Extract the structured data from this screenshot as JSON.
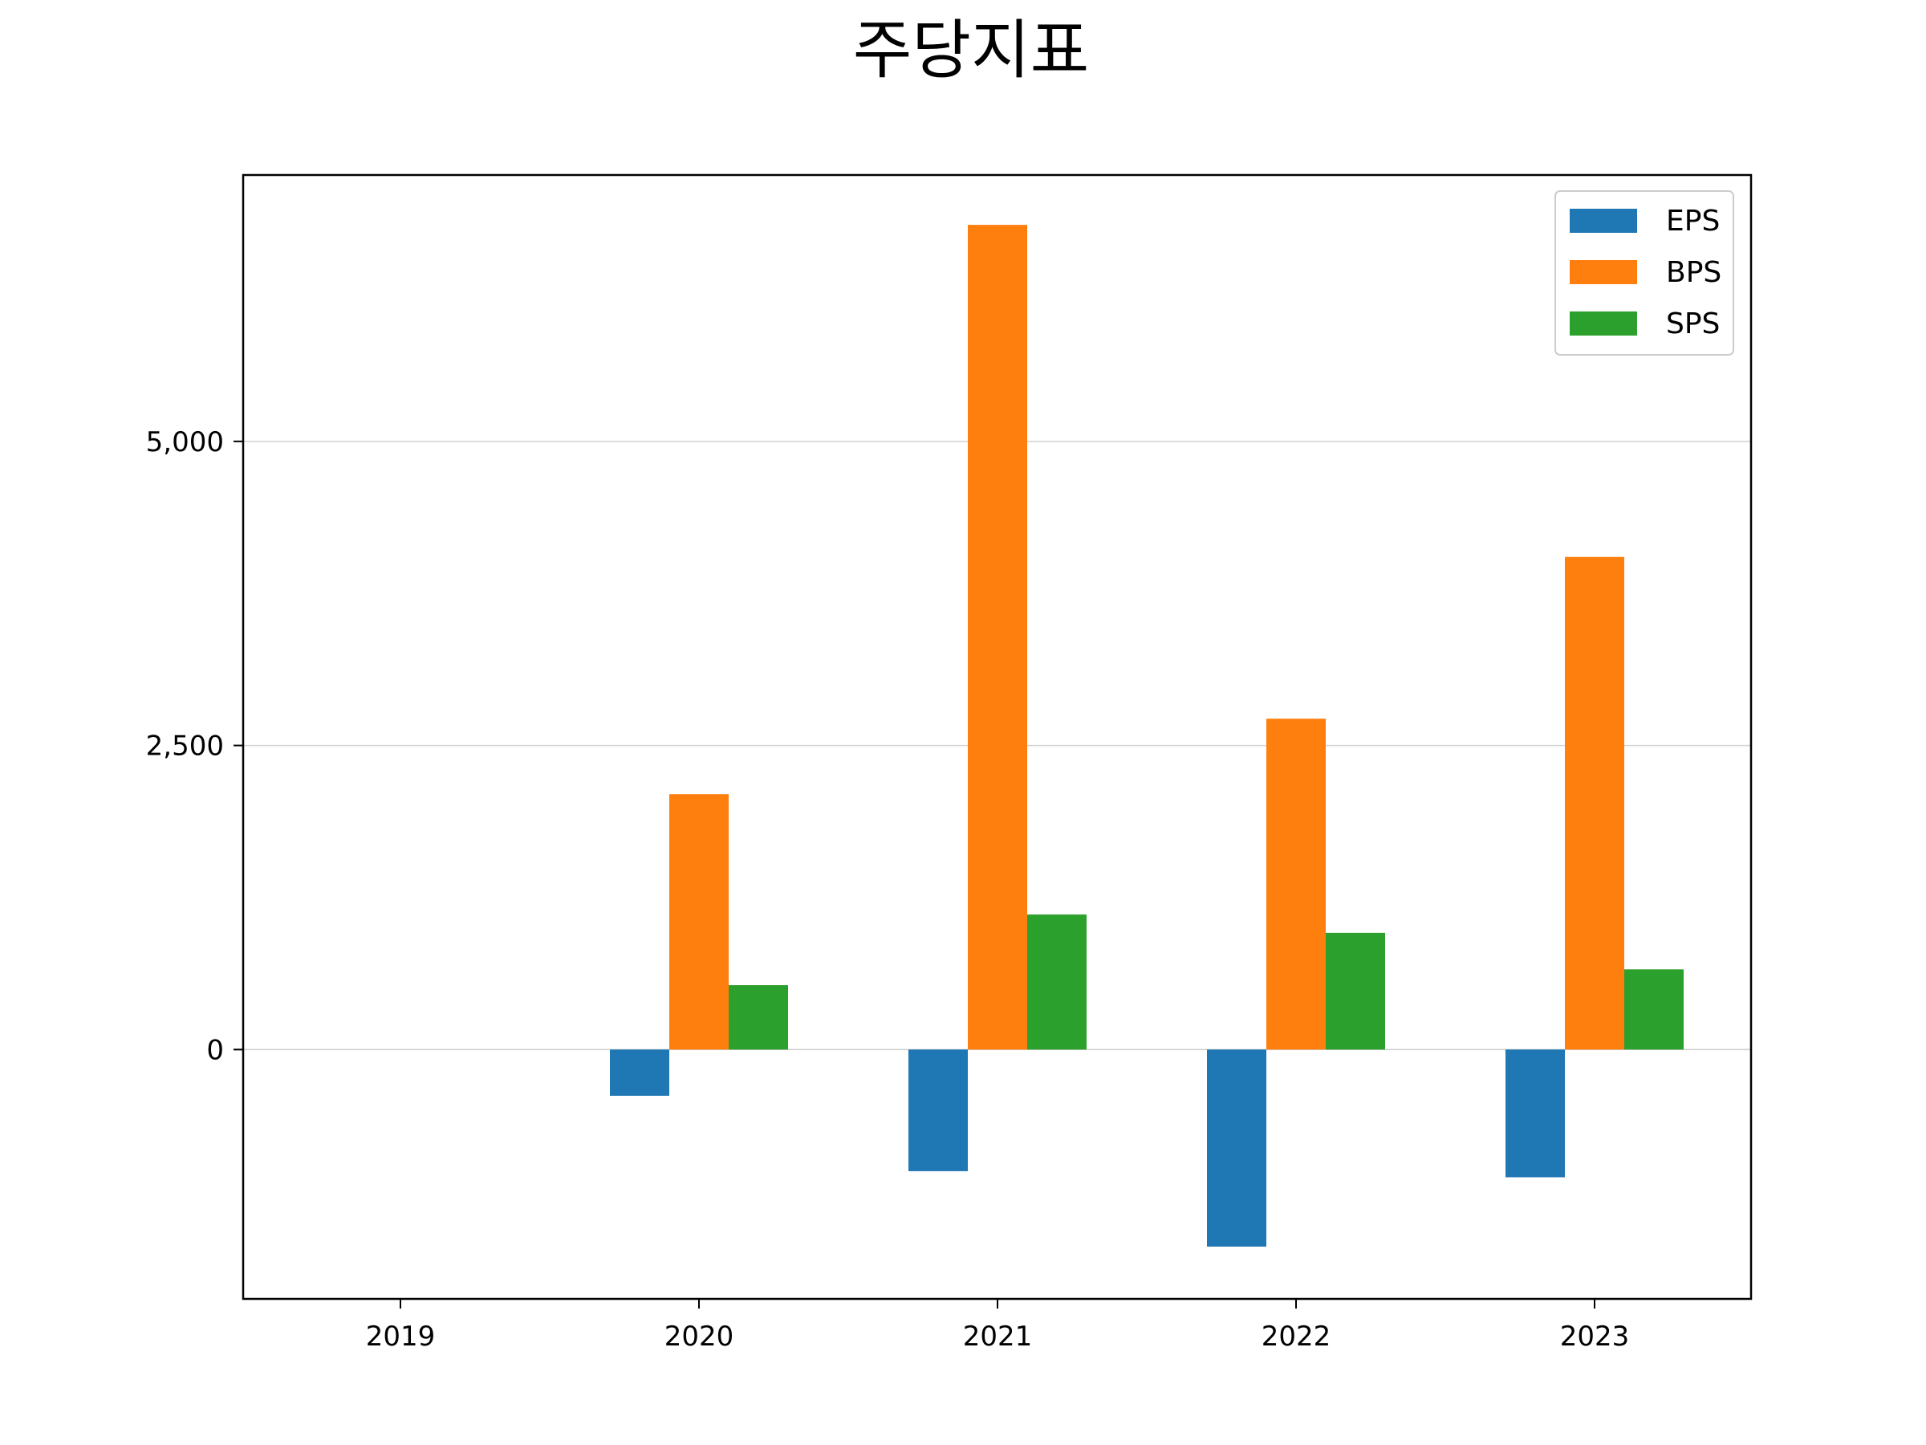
{
  "chart_data": {
    "type": "bar",
    "title": "주당지표",
    "xlabel": "",
    "ylabel": "",
    "categories": [
      "2019",
      "2020",
      "2021",
      "2022",
      "2023"
    ],
    "series": [
      {
        "name": "EPS",
        "color": "#1f77b4",
        "values": [
          null,
          -380,
          -1000,
          -1620,
          -1050
        ]
      },
      {
        "name": "BPS",
        "color": "#ff7f0e",
        "values": [
          null,
          2100,
          6780,
          2720,
          4050
        ]
      },
      {
        "name": "SPS",
        "color": "#2ca02c",
        "values": [
          null,
          530,
          1110,
          960,
          660
        ]
      }
    ],
    "yticks": [
      0,
      2500,
      5000
    ],
    "ytick_labels": [
      "0",
      "2,500",
      "5,000"
    ],
    "ylim": [
      -2050,
      7190
    ],
    "grid": "horizontal",
    "legend_position": "top-right"
  }
}
